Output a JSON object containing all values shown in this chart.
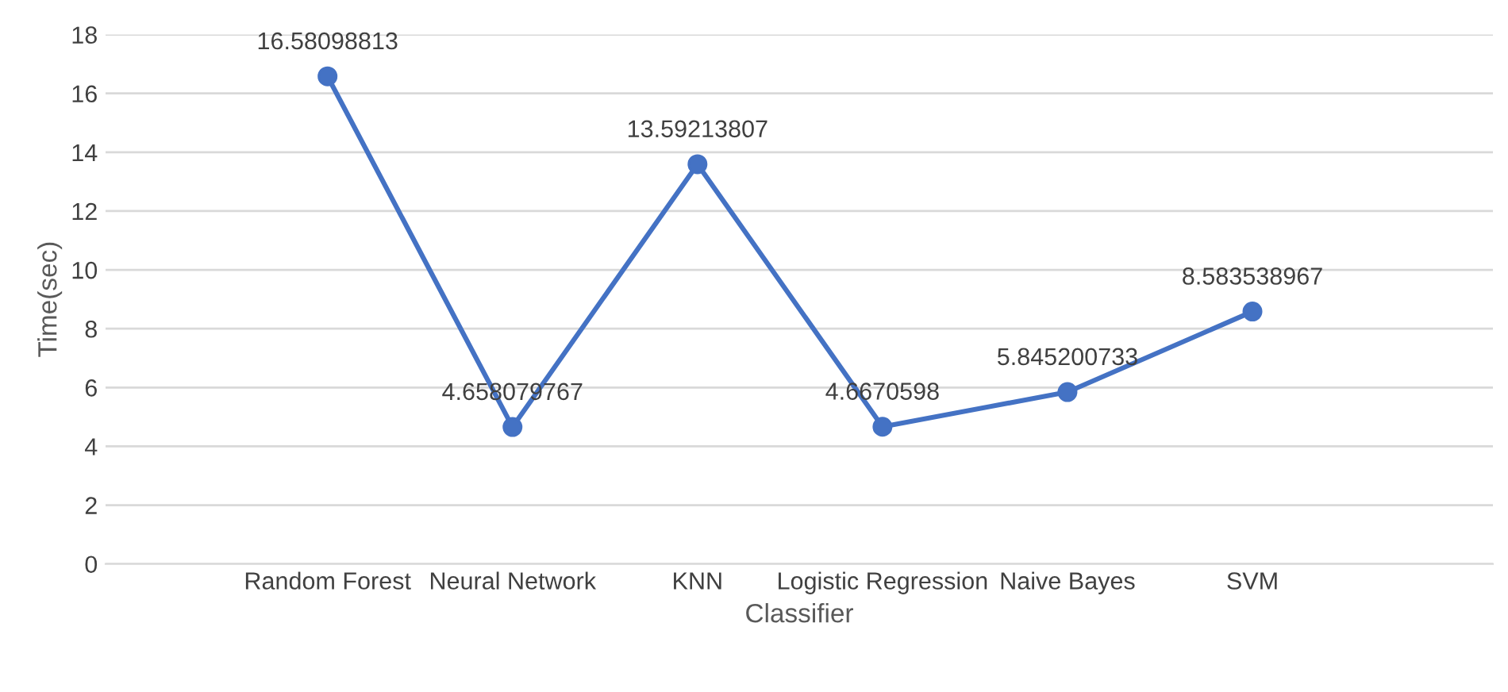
{
  "chart_data": {
    "type": "line",
    "xlabel": "Classifier",
    "ylabel": "Time(sec)",
    "categories": [
      "Random Forest",
      "Neural Network",
      "KNN",
      "Logistic Regression",
      "Naive Bayes",
      "SVM"
    ],
    "series": [
      {
        "color": "#4472c4",
        "values": [
          16.58098813,
          4.658079767,
          13.59213807,
          4.6670598,
          5.845200733,
          8.583538967
        ]
      }
    ],
    "ylim": [
      0,
      18
    ],
    "yticks": [
      0,
      2,
      4,
      6,
      8,
      10,
      12,
      14,
      16,
      18
    ],
    "grid": "y",
    "marker": "circle",
    "line_style": "solid",
    "data_labels": true
  }
}
